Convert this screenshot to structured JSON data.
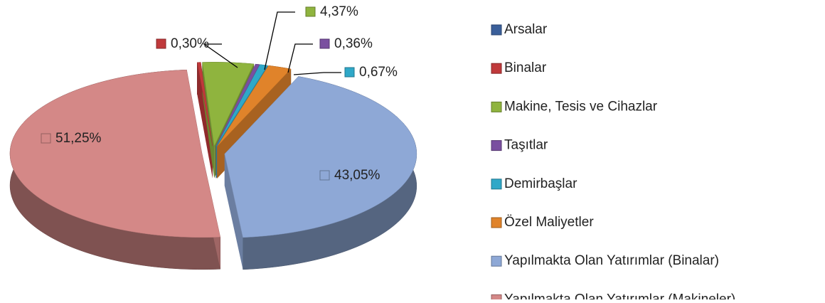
{
  "chart_data": {
    "type": "pie3d",
    "categories": [
      "Arsalar",
      "Binalar",
      "Makine, Tesis ve Cihazlar",
      "Taşıtlar",
      "Demirbaşlar",
      "Özel Maliyetler",
      "Yapılmakta Olan Yatırımlar (Binalar)",
      "Yapılmakta Olan Yatırımlar (Makineler)"
    ],
    "values": [
      0,
      0.3,
      4.37,
      0.36,
      0.67,
      2,
      43.05,
      51.25
    ],
    "value_labels": [
      null,
      "0,30%",
      "4,37%",
      "0,36%",
      "0,67%",
      null,
      "43,05%",
      "51,25%"
    ],
    "colors": [
      "#3a5f9a",
      "#c0393b",
      "#8fb43e",
      "#7a4fa0",
      "#2fa8c8",
      "#e0832a",
      "#8ea8d6",
      "#d48887"
    ],
    "legend": "right"
  }
}
